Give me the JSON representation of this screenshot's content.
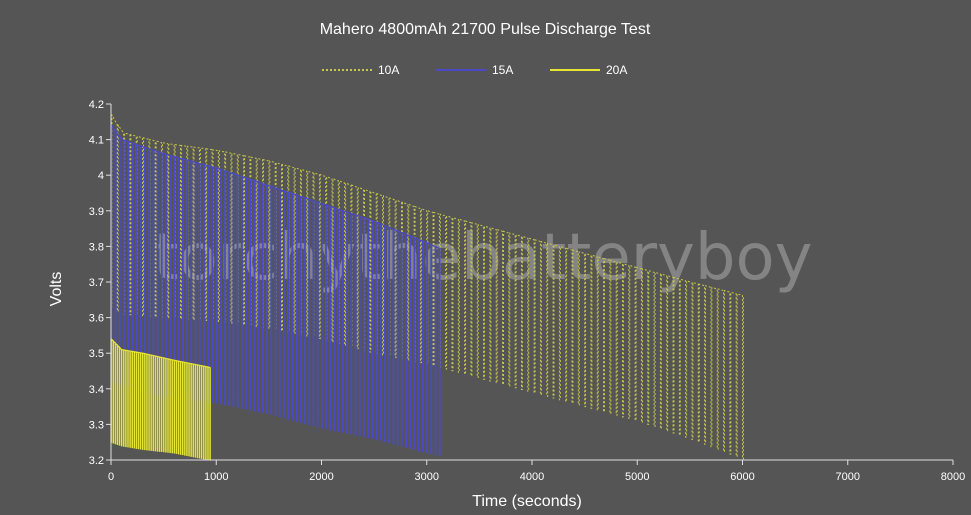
{
  "chart_data": {
    "type": "line",
    "title": "Mahero 4800mAh 21700 Pulse Discharge Test",
    "xlabel": "Time (seconds)",
    "ylabel": "Volts",
    "xlim": [
      0,
      8000
    ],
    "ylim": [
      3.2,
      4.2
    ],
    "x_ticks": [
      "0",
      "1000",
      "2000",
      "3000",
      "4000",
      "5000",
      "6000",
      "7000",
      "8000"
    ],
    "y_ticks": [
      "3.2",
      "3.3",
      "3.4",
      "3.5",
      "3.6",
      "3.7",
      "3.8",
      "3.9",
      "4",
      "4.1",
      "4.2"
    ],
    "grid": false,
    "legend_position": "top-center",
    "watermark": "torchythebatteryboy",
    "series": [
      {
        "name": "10A",
        "color": "#c8c84a",
        "line_style": "dotted",
        "pulse_period_s": 60,
        "end_time_s": 6030,
        "rest_voltage": {
          "x": [
            0,
            100,
            500,
            1000,
            1500,
            2000,
            2500,
            3000,
            3500,
            4000,
            4500,
            5000,
            5500,
            6030
          ],
          "y": [
            4.17,
            4.12,
            4.09,
            4.07,
            4.04,
            4.0,
            3.95,
            3.9,
            3.86,
            3.82,
            3.78,
            3.74,
            3.7,
            3.66
          ]
        },
        "load_voltage": {
          "x": [
            0,
            100,
            500,
            1000,
            1500,
            2000,
            2500,
            3000,
            3500,
            4000,
            4500,
            5000,
            5500,
            6030
          ],
          "y": [
            3.63,
            3.61,
            3.6,
            3.59,
            3.57,
            3.54,
            3.5,
            3.47,
            3.43,
            3.39,
            3.35,
            3.31,
            3.26,
            3.2
          ]
        }
      },
      {
        "name": "15A",
        "color": "#4a4ac8",
        "line_style": "solid",
        "pulse_period_s": 40,
        "end_time_s": 3150,
        "rest_voltage": {
          "x": [
            0,
            100,
            500,
            1000,
            1500,
            2000,
            2500,
            3000,
            3150
          ],
          "y": [
            4.14,
            4.1,
            4.06,
            4.02,
            3.97,
            3.92,
            3.87,
            3.81,
            3.79
          ]
        },
        "load_voltage": {
          "x": [
            0,
            100,
            500,
            1000,
            1500,
            2000,
            2500,
            3000,
            3150
          ],
          "y": [
            3.42,
            3.41,
            3.38,
            3.36,
            3.33,
            3.29,
            3.26,
            3.22,
            3.21
          ]
        }
      },
      {
        "name": "20A",
        "color": "#e6e632",
        "line_style": "solid",
        "pulse_period_s": 20,
        "end_time_s": 940,
        "rest_voltage": {
          "x": [
            0,
            100,
            300,
            600,
            940
          ],
          "y": [
            3.54,
            3.51,
            3.5,
            3.48,
            3.46
          ]
        },
        "load_voltage": {
          "x": [
            0,
            100,
            300,
            600,
            940
          ],
          "y": [
            3.25,
            3.24,
            3.23,
            3.22,
            3.2
          ]
        }
      }
    ]
  }
}
